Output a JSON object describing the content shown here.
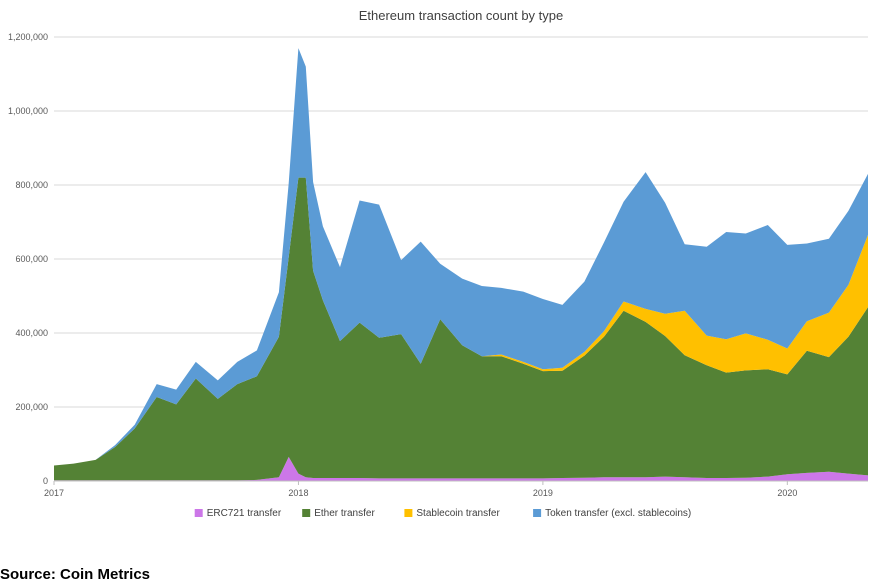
{
  "source_note": "Source: Coin Metrics",
  "chart_data": {
    "type": "area",
    "stacked": true,
    "title": "Ethereum transaction count by type",
    "xlabel": "",
    "ylabel": "",
    "x_ticks": [
      "2017",
      "2018",
      "2019",
      "2020"
    ],
    "y_ticks": [
      "0",
      "200,000",
      "400,000",
      "600,000",
      "800,000",
      "1,000,000",
      "1,200,000"
    ],
    "ylim": [
      0,
      1200000
    ],
    "xlim": [
      2017.0,
      2020.33
    ],
    "grid": "horizontal",
    "legend_position": "bottom",
    "x": [
      2017.0,
      2017.08,
      2017.17,
      2017.25,
      2017.33,
      2017.42,
      2017.5,
      2017.58,
      2017.67,
      2017.75,
      2017.83,
      2017.92,
      2017.96,
      2018.0,
      2018.03,
      2018.06,
      2018.1,
      2018.17,
      2018.25,
      2018.33,
      2018.42,
      2018.5,
      2018.58,
      2018.67,
      2018.75,
      2018.83,
      2018.92,
      2019.0,
      2019.08,
      2019.17,
      2019.25,
      2019.33,
      2019.42,
      2019.5,
      2019.58,
      2019.67,
      2019.75,
      2019.83,
      2019.92,
      2020.0,
      2020.08,
      2020.17,
      2020.25,
      2020.33
    ],
    "series": [
      {
        "name": "ERC721 transfer",
        "color": "#cc77e8",
        "values": [
          2000,
          2000,
          2000,
          2000,
          2000,
          2000,
          2000,
          2000,
          2000,
          2000,
          3000,
          10000,
          65000,
          20000,
          10000,
          8000,
          8000,
          8000,
          8000,
          7000,
          7000,
          7000,
          7000,
          7000,
          7000,
          7000,
          7000,
          7000,
          8000,
          9000,
          10000,
          10000,
          10000,
          12000,
          10000,
          8000,
          8000,
          9000,
          12000,
          18000,
          22000,
          25000,
          20000,
          15000
        ]
      },
      {
        "name": "Ether transfer",
        "color": "#548235",
        "values": [
          40000,
          45000,
          55000,
          90000,
          140000,
          225000,
          205000,
          275000,
          220000,
          260000,
          280000,
          380000,
          540000,
          800000,
          810000,
          560000,
          480000,
          370000,
          420000,
          380000,
          390000,
          310000,
          430000,
          360000,
          330000,
          330000,
          310000,
          290000,
          290000,
          330000,
          380000,
          450000,
          420000,
          380000,
          330000,
          305000,
          285000,
          290000,
          290000,
          270000,
          330000,
          310000,
          370000,
          455000
        ]
      },
      {
        "name": "Stablecoin transfer",
        "color": "#ffc000",
        "values": [
          0,
          0,
          0,
          0,
          0,
          0,
          0,
          0,
          0,
          0,
          0,
          0,
          0,
          0,
          0,
          0,
          0,
          0,
          0,
          0,
          0,
          0,
          0,
          0,
          0,
          5000,
          5000,
          5000,
          8000,
          10000,
          15000,
          25000,
          35000,
          60000,
          120000,
          80000,
          90000,
          100000,
          80000,
          70000,
          80000,
          120000,
          140000,
          195000
        ]
      },
      {
        "name": "Token transfer (excl. stablecoins)",
        "color": "#5b9bd5",
        "values": [
          0,
          0,
          0,
          5000,
          10000,
          35000,
          40000,
          45000,
          50000,
          60000,
          70000,
          120000,
          200000,
          350000,
          300000,
          240000,
          200000,
          200000,
          330000,
          360000,
          200000,
          330000,
          150000,
          180000,
          190000,
          180000,
          190000,
          190000,
          170000,
          190000,
          240000,
          270000,
          370000,
          300000,
          180000,
          240000,
          290000,
          270000,
          310000,
          280000,
          210000,
          200000,
          200000,
          165000
        ]
      }
    ]
  }
}
